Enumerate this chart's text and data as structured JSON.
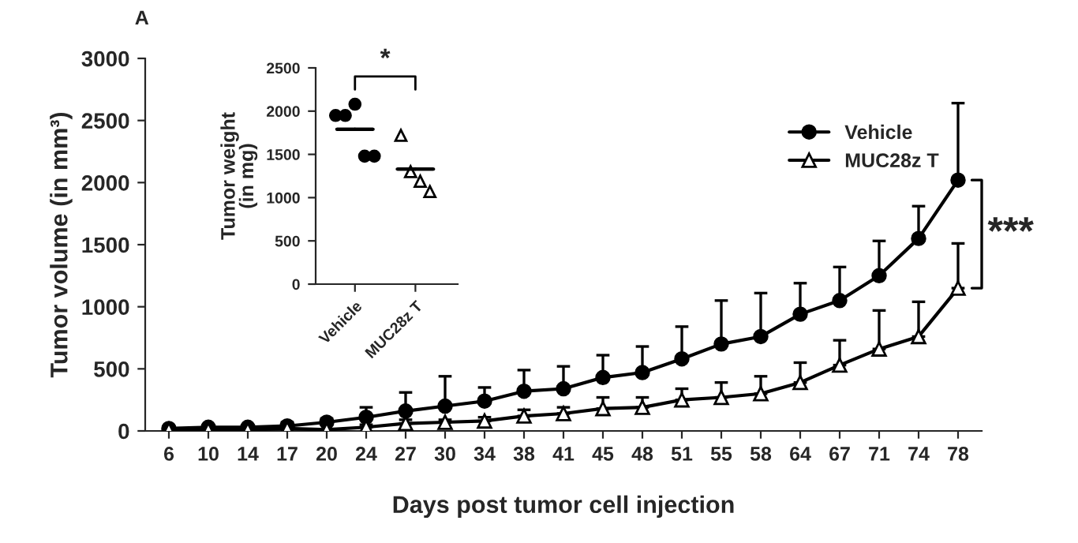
{
  "chart_data": [
    {
      "type": "line",
      "xlabel": "Days post tumor cell injection",
      "ylabel": "Tumor volume (in mm³)",
      "categories": [
        "6",
        "10",
        "14",
        "17",
        "20",
        "24",
        "27",
        "30",
        "34",
        "38",
        "41",
        "45",
        "48",
        "51",
        "55",
        "58",
        "64",
        "67",
        "71",
        "74",
        "78"
      ],
      "series": [
        {
          "name": "Vehicle",
          "color": "#000000",
          "marker": "circle",
          "values": [
            20,
            30,
            30,
            40,
            70,
            110,
            160,
            200,
            240,
            320,
            340,
            430,
            470,
            580,
            700,
            760,
            940,
            1050,
            1250,
            1550,
            2020
          ],
          "errors": [
            [
              20,
              30
            ],
            [
              30,
              40
            ],
            [
              30,
              40
            ],
            [
              40,
              70
            ],
            [
              70,
              100
            ],
            [
              110,
              190
            ],
            [
              160,
              310
            ],
            [
              200,
              440
            ],
            [
              240,
              350
            ],
            [
              320,
              490
            ],
            [
              340,
              520
            ],
            [
              430,
              610
            ],
            [
              470,
              680
            ],
            [
              580,
              840
            ],
            [
              700,
              1050
            ],
            [
              760,
              1110
            ],
            [
              940,
              1190
            ],
            [
              1050,
              1320
            ],
            [
              1250,
              1530
            ],
            [
              1550,
              1810
            ],
            [
              2020,
              2640
            ]
          ]
        },
        {
          "name": "MUC28z T",
          "color": "#000000",
          "marker": "triangle",
          "values": [
            10,
            10,
            10,
            20,
            10,
            30,
            60,
            70,
            80,
            120,
            140,
            180,
            190,
            250,
            270,
            300,
            390,
            530,
            660,
            760,
            1150
          ],
          "errors": [
            null,
            null,
            null,
            null,
            null,
            [
              30,
              50
            ],
            [
              60,
              90
            ],
            [
              70,
              90
            ],
            [
              80,
              110
            ],
            [
              120,
              170
            ],
            [
              140,
              190
            ],
            [
              180,
              270
            ],
            [
              190,
              270
            ],
            [
              250,
              340
            ],
            [
              270,
              390
            ],
            [
              300,
              440
            ],
            [
              390,
              550
            ],
            [
              530,
              730
            ],
            [
              660,
              970
            ],
            [
              760,
              1040
            ],
            [
              1150,
              1510
            ]
          ]
        }
      ],
      "ylim": [
        0,
        3000
      ],
      "yticks": [
        0,
        500,
        1000,
        1500,
        2000,
        2500,
        3000
      ],
      "legend": "top right",
      "grid": false,
      "line_style": "solid",
      "annotations": [
        "A",
        "***"
      ]
    },
    {
      "type": "scatter",
      "ylabel": "Tumor weight\n(in mg)",
      "categories": [
        "Vehicle",
        "MUC28z T"
      ],
      "series": [
        {
          "color": "#000000",
          "marker": "circle",
          "x": [
            "Vehicle",
            "Vehicle",
            "Vehicle",
            "Vehicle",
            "Vehicle"
          ],
          "values": [
            1950,
            1950,
            2080,
            1480,
            1480
          ]
        },
        {
          "color": "#000000",
          "marker": "triangle",
          "x": [
            "MUC28z T",
            "MUC28z T",
            "MUC28z T",
            "MUC28z T"
          ],
          "values": [
            1720,
            1300,
            1190,
            1070
          ]
        },
        {
          "type": "box",
          "color": "#000000",
          "boxes": [
            {
              "low": 1790,
              "q1": 1790,
              "median": 1790,
              "q3": 1790,
              "high": 1790
            },
            {
              "low": 1330,
              "q1": 1330,
              "median": 1330,
              "q3": 1330,
              "high": 1330
            }
          ]
        }
      ],
      "ylim": [
        0,
        2500
      ],
      "yticks": [
        0,
        500,
        1000,
        1500,
        2000,
        2500
      ],
      "legend": false,
      "grid": false,
      "annotations": [
        "*"
      ]
    }
  ]
}
